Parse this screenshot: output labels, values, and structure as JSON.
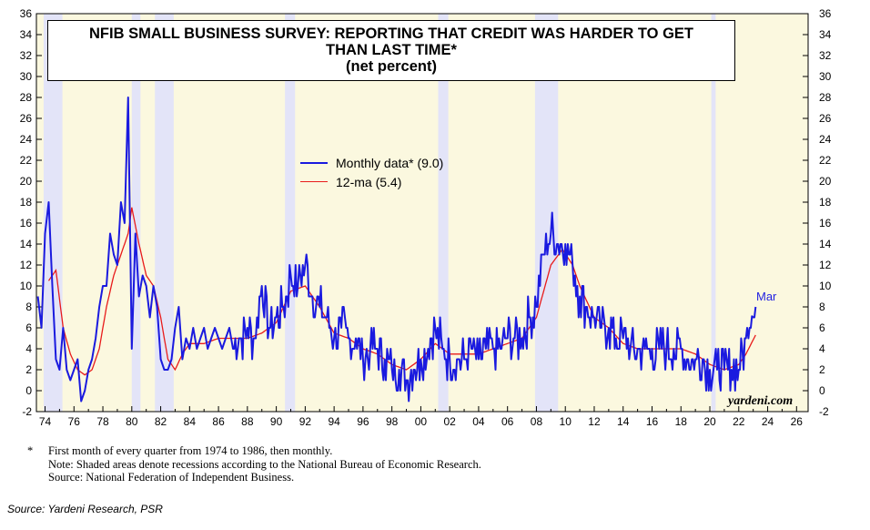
{
  "chart_data": {
    "type": "line",
    "title_lines": [
      "NFIB SMALL BUSINESS SURVEY: REPORTING THAT CREDIT WAS HARDER TO GET",
      "THAN LAST TIME*",
      "(net percent)"
    ],
    "ylim": [
      -2,
      36
    ],
    "yticks": [
      "-2",
      "0",
      "2",
      "4",
      "6",
      "8",
      "10",
      "12",
      "14",
      "16",
      "18",
      "20",
      "22",
      "24",
      "26",
      "28",
      "30",
      "32",
      "34",
      "36"
    ],
    "xlim": [
      1973.4,
      2026.8
    ],
    "xtick_labels": [
      "74",
      "76",
      "78",
      "80",
      "82",
      "84",
      "86",
      "88",
      "90",
      "92",
      "94",
      "96",
      "98",
      "00",
      "02",
      "04",
      "06",
      "08",
      "10",
      "12",
      "14",
      "16",
      "18",
      "20",
      "22",
      "24",
      "26"
    ],
    "recessions": [
      [
        1973.9,
        1975.2
      ],
      [
        1980.0,
        1980.6
      ],
      [
        1981.6,
        1982.9
      ],
      [
        1990.6,
        1991.3
      ],
      [
        2001.2,
        2001.9
      ],
      [
        2007.9,
        2009.5
      ],
      [
        2020.1,
        2020.4
      ]
    ],
    "colors": {
      "monthly": "#1a1adf",
      "ma": "#e81b1b",
      "recession": "#e3e4f8",
      "background": "#fbf8df"
    },
    "legend": {
      "monthly_label": "Monthly data* (9.0)",
      "ma_label": "12-ma (5.4)",
      "placement": "upper-center"
    },
    "last_label": "Mar",
    "series": [
      {
        "name": "Monthly data* (9.0)",
        "anchors": [
          [
            1973.5,
            9
          ],
          [
            1973.75,
            6
          ],
          [
            1974.0,
            15
          ],
          [
            1974.25,
            18
          ],
          [
            1974.5,
            10
          ],
          [
            1974.75,
            3
          ],
          [
            1975.0,
            2
          ],
          [
            1975.25,
            6
          ],
          [
            1975.5,
            2
          ],
          [
            1975.75,
            1
          ],
          [
            1976.0,
            2
          ],
          [
            1976.25,
            3
          ],
          [
            1976.5,
            -1
          ],
          [
            1976.75,
            0
          ],
          [
            1977.0,
            2
          ],
          [
            1977.25,
            3
          ],
          [
            1977.5,
            5
          ],
          [
            1977.75,
            8
          ],
          [
            1978.0,
            10
          ],
          [
            1978.25,
            10
          ],
          [
            1978.5,
            15
          ],
          [
            1978.75,
            13
          ],
          [
            1979.0,
            12
          ],
          [
            1979.25,
            18
          ],
          [
            1979.5,
            16
          ],
          [
            1979.75,
            28
          ],
          [
            1980.0,
            4
          ],
          [
            1980.25,
            15
          ],
          [
            1980.5,
            9
          ],
          [
            1980.75,
            11
          ],
          [
            1981.0,
            10
          ],
          [
            1981.25,
            7
          ],
          [
            1981.5,
            10
          ],
          [
            1981.75,
            8
          ],
          [
            1982.0,
            3
          ],
          [
            1982.25,
            2
          ],
          [
            1982.5,
            2
          ],
          [
            1982.75,
            3
          ],
          [
            1983.0,
            6
          ],
          [
            1983.25,
            8
          ],
          [
            1983.5,
            3
          ],
          [
            1983.75,
            5
          ],
          [
            1984.0,
            4
          ],
          [
            1984.25,
            6
          ],
          [
            1984.5,
            4
          ],
          [
            1984.75,
            5
          ],
          [
            1985.0,
            6
          ],
          [
            1985.25,
            4
          ],
          [
            1985.5,
            5
          ],
          [
            1985.75,
            6
          ],
          [
            1986.0,
            5
          ],
          [
            1986.25,
            4
          ],
          [
            1986.5,
            5
          ],
          [
            1986.75,
            6
          ],
          [
            1987.0,
            4
          ],
          [
            1987.5,
            5
          ],
          [
            1988.0,
            6
          ],
          [
            1988.5,
            5
          ],
          [
            1989.0,
            10
          ],
          [
            1989.5,
            6
          ],
          [
            1990.0,
            7
          ],
          [
            1990.5,
            8
          ],
          [
            1991.0,
            11
          ],
          [
            1991.5,
            10
          ],
          [
            1992.0,
            12
          ],
          [
            1992.5,
            9
          ],
          [
            1993.0,
            8
          ],
          [
            1993.5,
            7
          ],
          [
            1994.0,
            5
          ],
          [
            1994.5,
            6
          ],
          [
            1995.0,
            5
          ],
          [
            1995.5,
            5
          ],
          [
            1996.0,
            3
          ],
          [
            1996.5,
            4
          ],
          [
            1997.0,
            4
          ],
          [
            1997.5,
            3
          ],
          [
            1998.0,
            2
          ],
          [
            1998.5,
            2
          ],
          [
            1999.0,
            1
          ],
          [
            1999.5,
            2
          ],
          [
            2000.0,
            3
          ],
          [
            2000.5,
            4
          ],
          [
            2001.0,
            6
          ],
          [
            2001.5,
            4
          ],
          [
            2002.0,
            3
          ],
          [
            2002.5,
            3
          ],
          [
            2003.0,
            3
          ],
          [
            2003.5,
            4
          ],
          [
            2004.0,
            3
          ],
          [
            2004.5,
            4
          ],
          [
            2005.0,
            4
          ],
          [
            2005.5,
            4
          ],
          [
            2006.0,
            5
          ],
          [
            2006.5,
            5
          ],
          [
            2007.0,
            5
          ],
          [
            2007.5,
            7
          ],
          [
            2008.0,
            8
          ],
          [
            2008.5,
            13
          ],
          [
            2009.0,
            15
          ],
          [
            2009.5,
            14
          ],
          [
            2010.0,
            14
          ],
          [
            2010.5,
            12
          ],
          [
            2011.0,
            9
          ],
          [
            2011.5,
            8
          ],
          [
            2012.0,
            7
          ],
          [
            2012.5,
            6
          ],
          [
            2013.0,
            6
          ],
          [
            2013.5,
            5
          ],
          [
            2014.0,
            5
          ],
          [
            2014.5,
            4
          ],
          [
            2015.0,
            4
          ],
          [
            2015.5,
            4
          ],
          [
            2016.0,
            4
          ],
          [
            2016.5,
            4
          ],
          [
            2017.0,
            4
          ],
          [
            2017.5,
            4
          ],
          [
            2018.0,
            4
          ],
          [
            2018.5,
            3
          ],
          [
            2019.0,
            3
          ],
          [
            2019.5,
            3
          ],
          [
            2020.0,
            2
          ],
          [
            2020.5,
            2
          ],
          [
            2021.0,
            2
          ],
          [
            2021.5,
            2
          ],
          [
            2022.0,
            2
          ],
          [
            2022.5,
            5
          ],
          [
            2022.9,
            7
          ],
          [
            2023.2,
            9
          ]
        ]
      },
      {
        "name": "12-ma (5.4)",
        "anchors": [
          [
            1974.25,
            10.5
          ],
          [
            1974.75,
            11.5
          ],
          [
            1975.25,
            6
          ],
          [
            1975.75,
            3.5
          ],
          [
            1976.25,
            2
          ],
          [
            1976.75,
            1.5
          ],
          [
            1977.25,
            2
          ],
          [
            1977.75,
            4
          ],
          [
            1978.25,
            8
          ],
          [
            1978.75,
            11
          ],
          [
            1979.25,
            13
          ],
          [
            1979.75,
            15
          ],
          [
            1980.0,
            17.5
          ],
          [
            1980.5,
            14
          ],
          [
            1981.0,
            11
          ],
          [
            1981.5,
            10
          ],
          [
            1982.0,
            7
          ],
          [
            1982.5,
            3
          ],
          [
            1983.0,
            2
          ],
          [
            1983.5,
            3.5
          ],
          [
            1984.0,
            4.5
          ],
          [
            1985.0,
            4.5
          ],
          [
            1986.0,
            5
          ],
          [
            1987.0,
            5
          ],
          [
            1988.0,
            5
          ],
          [
            1989.0,
            5.5
          ],
          [
            1990.0,
            6.5
          ],
          [
            1991.0,
            9.5
          ],
          [
            1992.0,
            10
          ],
          [
            1993.0,
            8
          ],
          [
            1994.0,
            5.5
          ],
          [
            1995.0,
            5
          ],
          [
            1996.0,
            4
          ],
          [
            1997.0,
            3.5
          ],
          [
            1998.0,
            2.5
          ],
          [
            1999.0,
            2
          ],
          [
            2000.0,
            3
          ],
          [
            2001.0,
            4.5
          ],
          [
            2002.0,
            3.5
          ],
          [
            2003.0,
            3.5
          ],
          [
            2004.0,
            3.5
          ],
          [
            2005.0,
            4
          ],
          [
            2006.0,
            4.5
          ],
          [
            2007.0,
            5
          ],
          [
            2008.0,
            7
          ],
          [
            2009.0,
            12
          ],
          [
            2009.8,
            13.5
          ],
          [
            2010.5,
            12
          ],
          [
            2011.0,
            10
          ],
          [
            2012.0,
            7
          ],
          [
            2013.0,
            6
          ],
          [
            2014.0,
            4.5
          ],
          [
            2015.0,
            4
          ],
          [
            2016.0,
            4
          ],
          [
            2017.0,
            4
          ],
          [
            2018.0,
            4
          ],
          [
            2019.0,
            3.5
          ],
          [
            2020.0,
            2.5
          ],
          [
            2021.0,
            2
          ],
          [
            2022.0,
            2.5
          ],
          [
            2022.5,
            3.5
          ],
          [
            2023.2,
            5.4
          ]
        ]
      }
    ]
  },
  "notes": {
    "star": "*",
    "line1": "First month of every quarter from 1974 to 1986, then monthly.",
    "line2": "Note: Shaded areas denote recessions according to the National Bureau of Economic Research.",
    "line3": "Source: National Federation of Independent Business."
  },
  "watermark": "yardeni.com",
  "source": "Source: Yardeni Research, PSR"
}
